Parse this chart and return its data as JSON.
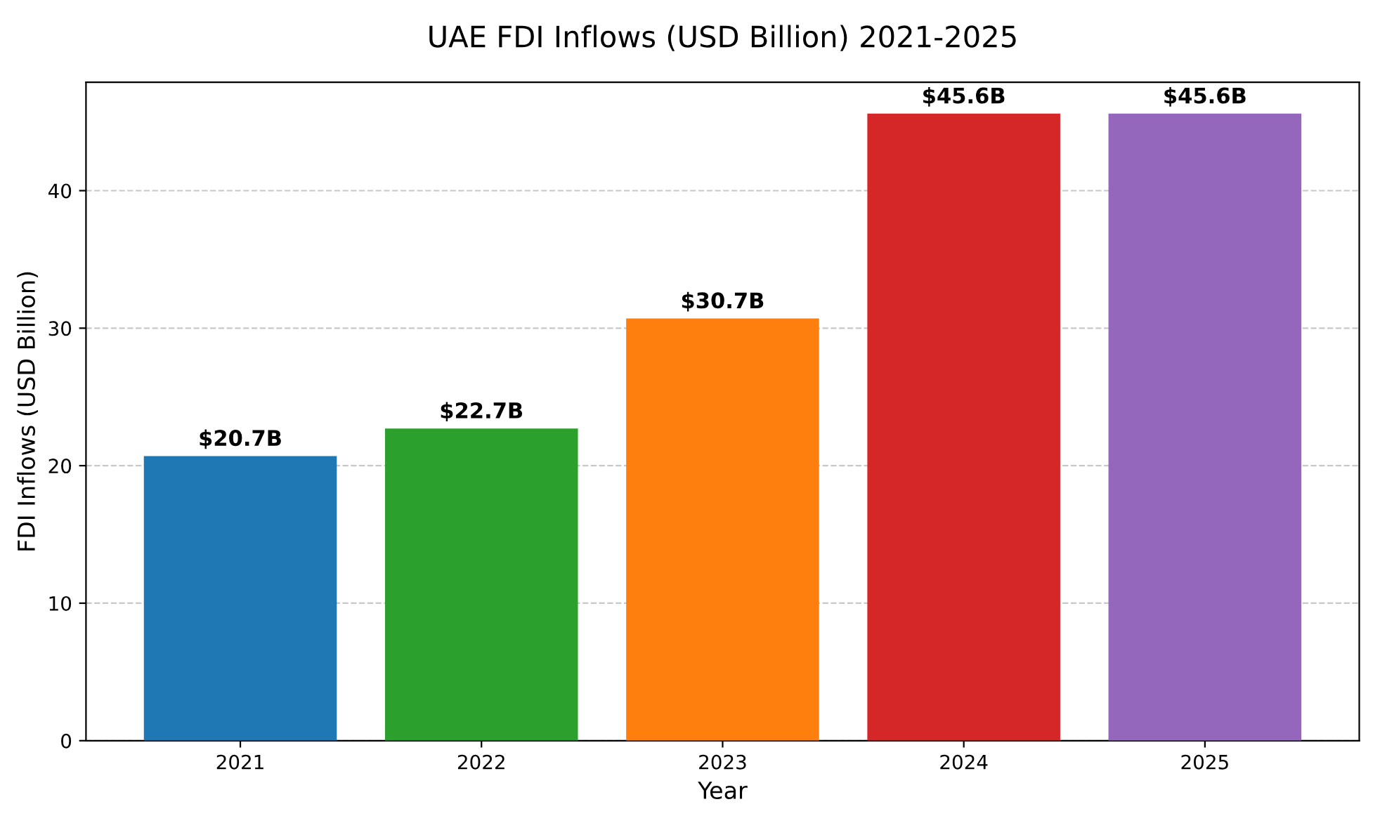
{
  "chart_data": {
    "type": "bar",
    "title": "UAE FDI Inflows (USD Billion) 2021-2025",
    "xlabel": "Year",
    "ylabel": "FDI Inflows (USD Billion)",
    "categories": [
      "2021",
      "2022",
      "2023",
      "2024",
      "2025"
    ],
    "values": [
      20.7,
      22.7,
      30.7,
      45.6,
      45.6
    ],
    "value_labels": [
      "$20.7B",
      "$22.7B",
      "$30.7B",
      "$45.6B",
      "$45.6B"
    ],
    "colors": [
      "#1f77b4",
      "#2ca02c",
      "#ff7f0e",
      "#d62728",
      "#9467bd"
    ],
    "ylim": [
      0,
      47.88
    ],
    "yticks": [
      0,
      10,
      20,
      30,
      40
    ],
    "grid": "y"
  }
}
